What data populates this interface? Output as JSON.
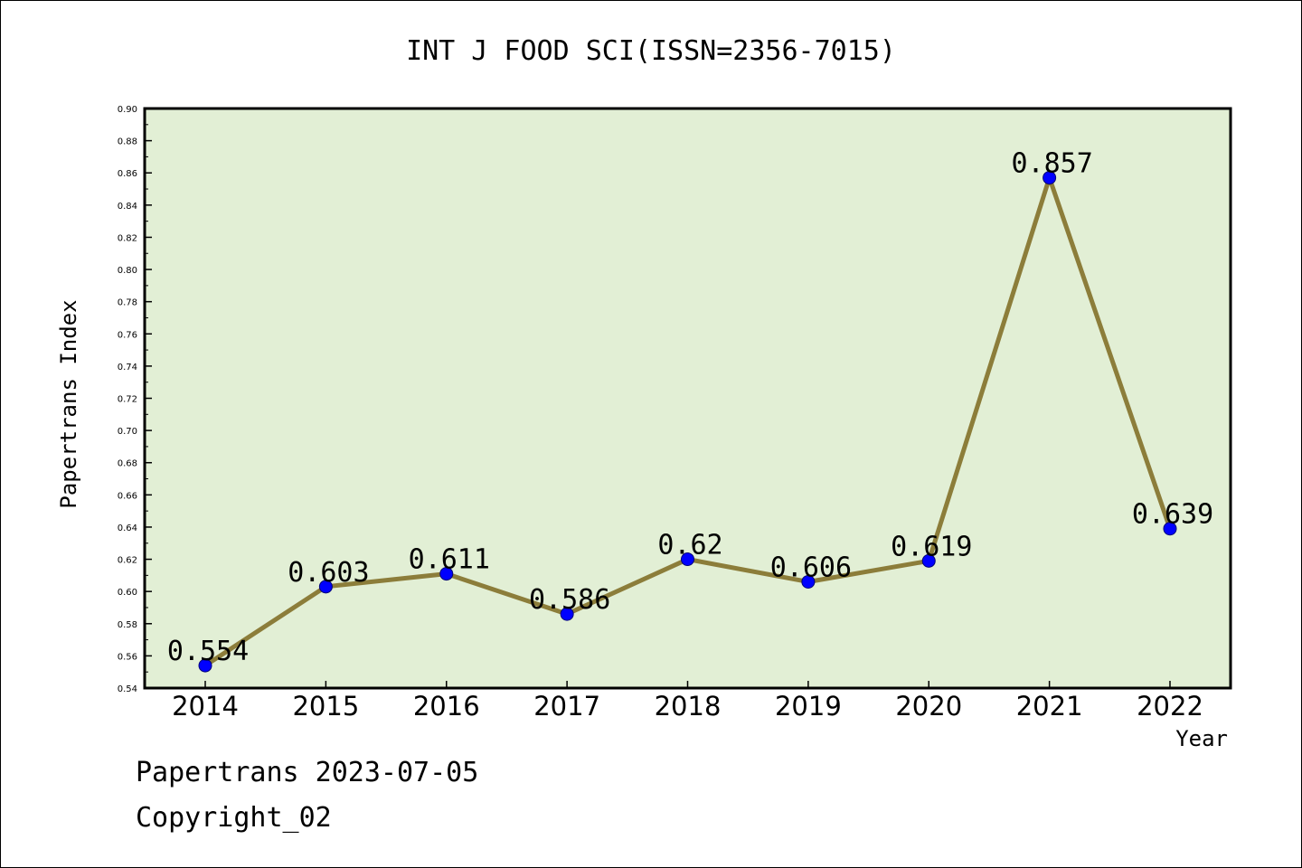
{
  "chart_data": {
    "type": "line",
    "title": "INT J FOOD SCI(ISSN=2356-7015)",
    "xlabel": "Year",
    "ylabel": "Papertrans Index",
    "categories": [
      "2014",
      "2015",
      "2016",
      "2017",
      "2018",
      "2019",
      "2020",
      "2021",
      "2022"
    ],
    "series": [
      {
        "values": [
          0.554,
          0.603,
          0.611,
          0.586,
          0.62,
          0.606,
          0.619,
          0.857,
          0.639
        ],
        "labels": [
          "0.554",
          "0.603",
          "0.611",
          "0.586",
          "0.62",
          "0.606",
          "0.619",
          "0.857",
          "0.639"
        ]
      }
    ],
    "ylim": [
      0.54,
      0.9
    ],
    "yticks": [
      "0.54",
      "0.56",
      "0.58",
      "0.60",
      "0.62",
      "0.64",
      "0.66",
      "0.68",
      "0.70",
      "0.72",
      "0.74",
      "0.76",
      "0.78",
      "0.80",
      "0.82",
      "0.84",
      "0.86",
      "0.88",
      "0.90"
    ],
    "grid": false,
    "legend": "none",
    "colors": {
      "plot_background": "#e2efd5",
      "line": "#8c7d3a",
      "marker": "#0000ff"
    }
  },
  "footer": {
    "line1": "Papertrans 2023-07-05",
    "line2": "Copyright_02"
  }
}
